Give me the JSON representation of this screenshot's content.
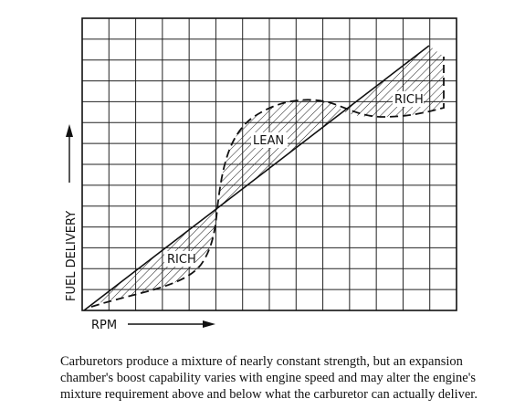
{
  "labels": {
    "rich_low": "RICH",
    "lean": "LEAN",
    "rich_high": "RICH"
  },
  "axes": {
    "y": "FUEL DELIVERY",
    "x": "RPM"
  },
  "caption": [
    "Carburetors produce a mixture of nearly constant strength, but an expansion",
    "chamber's boost capability varies with engine speed and may alter the engine's",
    "mixture requirement above and below what the carburetor can actually deliver."
  ]
}
